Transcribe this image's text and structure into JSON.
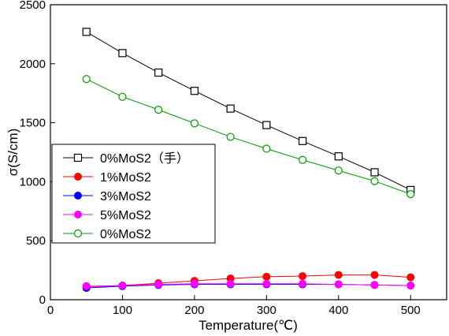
{
  "chart_data": {
    "type": "line",
    "xlabel": "Temperature(℃)",
    "ylabel": "σ(S/cm)",
    "xlim": [
      0,
      550
    ],
    "ylim": [
      0,
      2500
    ],
    "xticks": [
      0,
      100,
      200,
      300,
      400,
      500
    ],
    "yticks": [
      0,
      500,
      1000,
      1500,
      2000,
      2500
    ],
    "grid": false,
    "legend_position": "middle-left",
    "x": [
      50,
      100,
      150,
      200,
      250,
      300,
      350,
      400,
      450,
      500
    ],
    "series": [
      {
        "name": "0%MoS2（手）",
        "color": "#000000",
        "marker": "open-square",
        "values": [
          2270,
          2090,
          1925,
          1770,
          1620,
          1480,
          1345,
          1215,
          1080,
          930
        ]
      },
      {
        "name": "1%MoS2",
        "color": "#ff0000",
        "marker": "filled-circle",
        "values": [
          110,
          120,
          140,
          160,
          180,
          195,
          200,
          210,
          210,
          190
        ]
      },
      {
        "name": "3%MoS2",
        "color": "#0000ff",
        "marker": "filled-circle",
        "values": [
          100,
          115,
          125,
          130,
          130,
          130,
          130,
          130,
          125,
          120
        ]
      },
      {
        "name": "5%MoS2",
        "color": "#ff00ff",
        "marker": "filled-circle",
        "values": [
          115,
          120,
          130,
          135,
          135,
          135,
          135,
          130,
          125,
          120
        ]
      },
      {
        "name": "0%MoS2",
        "color": "#009900",
        "marker": "open-circle",
        "values": [
          1870,
          1720,
          1610,
          1495,
          1380,
          1280,
          1185,
          1095,
          1005,
          895
        ]
      }
    ]
  }
}
